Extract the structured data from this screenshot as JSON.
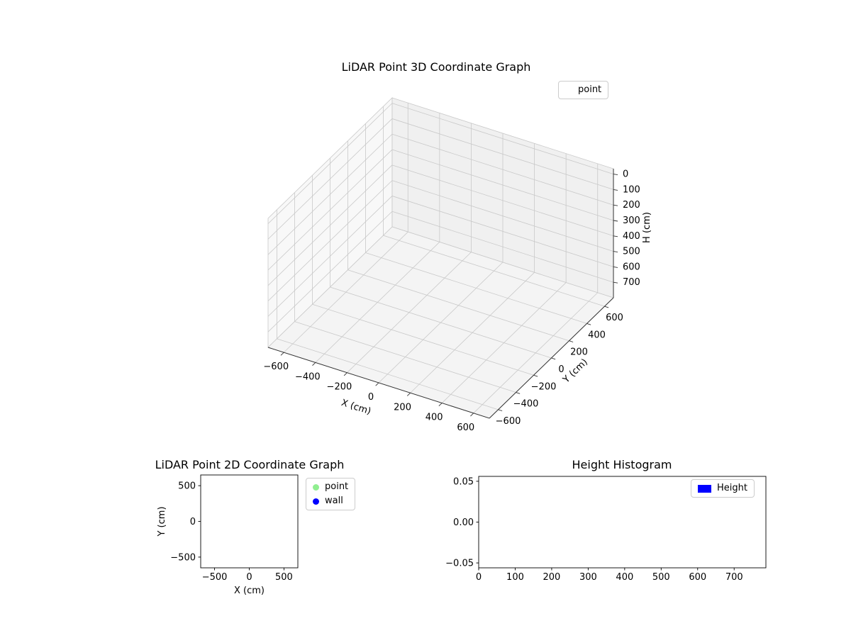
{
  "figure": {
    "background_color": "#ffffff"
  },
  "chart_data": [
    {
      "id": "lidar-3d",
      "type": "scatter3d",
      "title": "LiDAR Point 3D Coordinate Graph",
      "xlabel": "X (cm)",
      "ylabel": "Y (cm)",
      "zlabel": "H (cm)",
      "xlim": [
        -700,
        700
      ],
      "ylim": [
        -700,
        700
      ],
      "zlim": [
        -35,
        800
      ],
      "z_axis_inverted": true,
      "xticks": [
        -600,
        -400,
        -200,
        0,
        200,
        400,
        600
      ],
      "xtick_labels": [
        "−600",
        "−400",
        "−200",
        "0",
        "200",
        "400",
        "600"
      ],
      "yticks": [
        -600,
        -400,
        -200,
        0,
        200,
        400,
        600
      ],
      "ytick_labels": [
        "−600",
        "−400",
        "−200",
        "0",
        "200",
        "400",
        "600"
      ],
      "zticks": [
        0,
        100,
        200,
        300,
        400,
        500,
        600,
        700
      ],
      "ztick_labels": [
        "0",
        "100",
        "200",
        "300",
        "400",
        "500",
        "600",
        "700"
      ],
      "grid": true,
      "points": [],
      "legend": {
        "position": "upper-right",
        "items": [
          {
            "label": "point",
            "marker": "none",
            "color": ""
          }
        ]
      },
      "pane_colors": [
        "#f8f8f8",
        "#f0f0f0",
        "#f4f4f4"
      ],
      "grid_color": "#c9c9c9",
      "axis_line_color": "#333333"
    },
    {
      "id": "lidar-2d",
      "type": "scatter",
      "title": "LiDAR Point 2D Coordinate Graph",
      "xlabel": "X (cm)",
      "ylabel": "Y (cm)",
      "xlim": [
        -700,
        700
      ],
      "ylim": [
        -650,
        650
      ],
      "xticks": [
        -500,
        0,
        500
      ],
      "xtick_labels": [
        "−500",
        "0",
        "500"
      ],
      "yticks": [
        -500,
        0,
        500
      ],
      "ytick_labels": [
        "−500",
        "0",
        "500"
      ],
      "grid": false,
      "points": [],
      "legend": {
        "position": "outside-right",
        "items": [
          {
            "label": "point",
            "marker": "dot",
            "color": "#90ee90"
          },
          {
            "label": "wall",
            "marker": "dot",
            "color": "#0000ff"
          }
        ]
      }
    },
    {
      "id": "height-histogram",
      "type": "bar",
      "title": "Height Histogram",
      "xlabel": "",
      "ylabel": "",
      "xlim": [
        0,
        787
      ],
      "ylim": [
        -0.056,
        0.056
      ],
      "xticks": [
        0,
        100,
        200,
        300,
        400,
        500,
        600,
        700
      ],
      "xtick_labels": [
        "0",
        "100",
        "200",
        "300",
        "400",
        "500",
        "600",
        "700"
      ],
      "yticks": [
        -0.05,
        0,
        0.05
      ],
      "ytick_labels": [
        "−0.05",
        "0.00",
        "0.05"
      ],
      "grid": false,
      "values": [],
      "legend": {
        "position": "upper-right-inside",
        "items": [
          {
            "label": "Height",
            "marker": "rect",
            "color": "#0000ff"
          }
        ]
      }
    }
  ]
}
